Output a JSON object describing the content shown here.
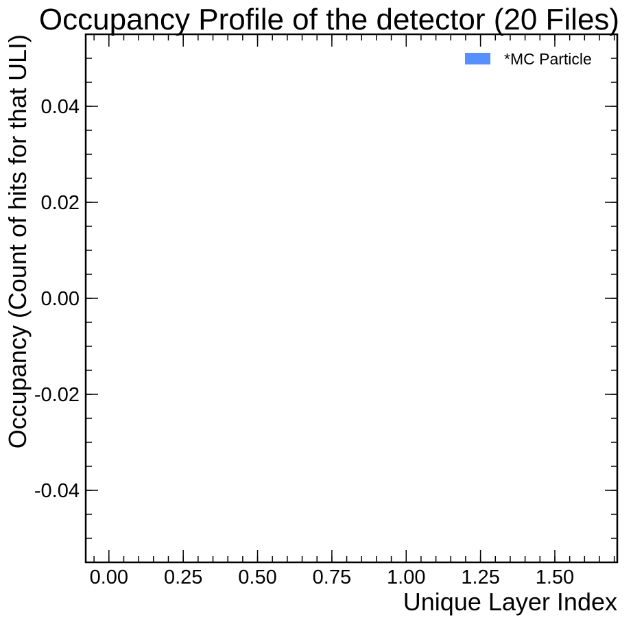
{
  "chart_data": {
    "type": "bar",
    "title": "Occupancy Profile of the detector (20 Files)",
    "xlabel": "Unique Layer Index",
    "ylabel": "Occupancy (Count of hits for that ULI)",
    "xlim": [
      -0.078,
      1.71
    ],
    "ylim": [
      -0.055,
      0.055
    ],
    "x_ticks": [
      0.0,
      0.25,
      0.5,
      0.75,
      1.0,
      1.25,
      1.5
    ],
    "x_tick_labels": [
      "0.00",
      "0.25",
      "0.50",
      "0.75",
      "1.00",
      "1.25",
      "1.50"
    ],
    "y_ticks": [
      -0.04,
      -0.02,
      0.0,
      0.02,
      0.04
    ],
    "y_tick_labels": [
      "-0.04",
      "-0.02",
      "0.00",
      "0.02",
      "0.04"
    ],
    "series": [
      {
        "name": "*MC Particle",
        "color": "#5790fc",
        "values": []
      }
    ],
    "legend": {
      "position": "top-right"
    },
    "grid": false
  }
}
